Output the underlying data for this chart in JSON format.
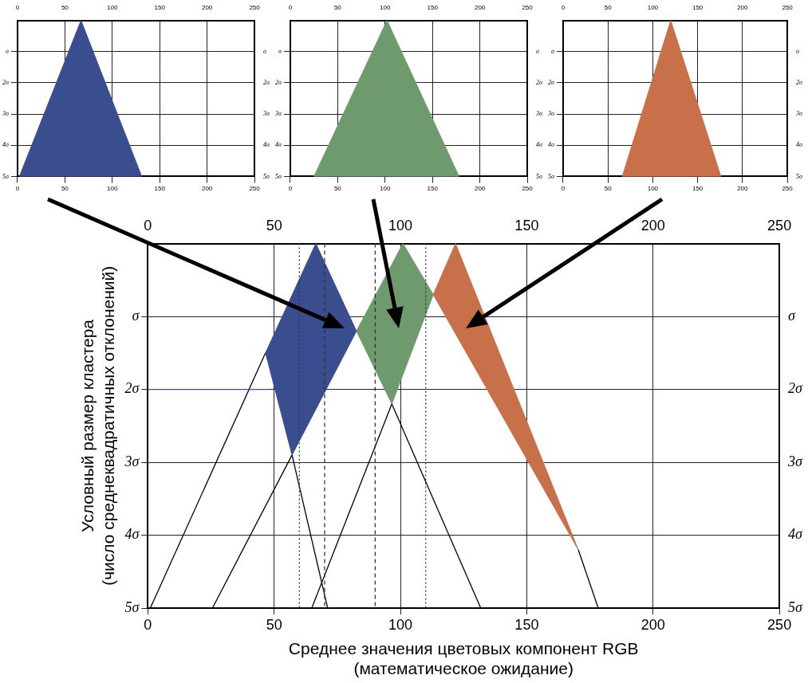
{
  "chart_data": [
    {
      "type": "area",
      "xlim": [
        0,
        250
      ],
      "xticks": [
        0,
        50,
        100,
        150,
        200,
        250
      ],
      "x2lim": [
        0,
        250
      ],
      "x2ticks": [
        0,
        50,
        100,
        150,
        200,
        250
      ],
      "ylim": [
        5,
        0
      ],
      "yticks": [
        {
          "value": 1,
          "label": "σ"
        },
        {
          "value": 2,
          "label": "2σ"
        },
        {
          "value": 3,
          "label": "3σ"
        },
        {
          "value": 4,
          "label": "4σ"
        },
        {
          "value": 5,
          "label": "5σ"
        }
      ],
      "y2lim": [
        5,
        0
      ],
      "y2ticks": [
        {
          "value": 1,
          "label": "σ"
        },
        {
          "value": 2,
          "label": "2σ"
        },
        {
          "value": 3,
          "label": "3σ"
        },
        {
          "value": 4,
          "label": "4σ"
        },
        {
          "value": 5,
          "label": "5σ"
        }
      ],
      "grid": true,
      "legend": false,
      "marker": "none",
      "series": [
        {
          "color": "#3a4e8f",
          "x": [
            2,
            67,
            131,
            2
          ],
          "values": [
            5,
            0,
            5,
            5
          ]
        }
      ]
    },
    {
      "type": "area",
      "xlim": [
        0,
        250
      ],
      "xticks": [
        0,
        50,
        100,
        150,
        200,
        250
      ],
      "x2lim": [
        0,
        250
      ],
      "x2ticks": [
        0,
        50,
        100,
        150,
        200,
        250
      ],
      "ylim": [
        5,
        0
      ],
      "yticks": [
        {
          "value": 1,
          "label": "σ"
        },
        {
          "value": 2,
          "label": "2σ"
        },
        {
          "value": 3,
          "label": "3σ"
        },
        {
          "value": 4,
          "label": "4σ"
        },
        {
          "value": 5,
          "label": "5σ"
        }
      ],
      "y2lim": [
        5,
        0
      ],
      "y2ticks": [
        {
          "value": 1,
          "label": "σ"
        },
        {
          "value": 2,
          "label": "2σ"
        },
        {
          "value": 3,
          "label": "3σ"
        },
        {
          "value": 4,
          "label": "4σ"
        },
        {
          "value": 5,
          "label": "5σ"
        }
      ],
      "grid": true,
      "legend": false,
      "marker": "none",
      "series": [
        {
          "color": "#6f9a6e",
          "x": [
            25,
            102,
            178,
            25
          ],
          "values": [
            5,
            0,
            5,
            5
          ]
        }
      ]
    },
    {
      "type": "area",
      "xlim": [
        0,
        250
      ],
      "xticks": [
        0,
        50,
        100,
        150,
        200,
        250
      ],
      "x2lim": [
        0,
        250
      ],
      "x2ticks": [
        0,
        50,
        100,
        150,
        200,
        250
      ],
      "ylim": [
        5,
        0
      ],
      "yticks": [
        {
          "value": 1,
          "label": "σ"
        },
        {
          "value": 2,
          "label": "2σ"
        },
        {
          "value": 3,
          "label": "3σ"
        },
        {
          "value": 4,
          "label": "4σ"
        },
        {
          "value": 5,
          "label": "5σ"
        }
      ],
      "y2lim": [
        5,
        0
      ],
      "y2ticks": [
        {
          "value": 1,
          "label": "σ"
        },
        {
          "value": 2,
          "label": "2σ"
        },
        {
          "value": 3,
          "label": "3σ"
        },
        {
          "value": 4,
          "label": "4σ"
        },
        {
          "value": 5,
          "label": "5σ"
        }
      ],
      "grid": true,
      "legend": false,
      "marker": "none",
      "series": [
        {
          "color": "#c8704a",
          "x": [
            66,
            120,
            176,
            66
          ],
          "values": [
            5,
            0,
            5,
            5
          ]
        }
      ]
    },
    {
      "type": "area",
      "xlabel": "Среднее значения цветовых компонент RGB\n(математическое ожидание)",
      "ylabel": "Условный размер кластера\n(число среднеквадратичных отклонений)",
      "xlim": [
        0,
        250
      ],
      "xticks": [
        0,
        50,
        100,
        150,
        200,
        250
      ],
      "x2lim": [
        0,
        250
      ],
      "x2ticks": [
        0,
        50,
        100,
        150,
        200,
        250
      ],
      "ylim": [
        5,
        0
      ],
      "yticks": [
        {
          "value": 1,
          "label": "σ"
        },
        {
          "value": 2,
          "label": "2σ"
        },
        {
          "value": 3,
          "label": "3σ"
        },
        {
          "value": 4,
          "label": "4σ"
        },
        {
          "value": 5,
          "label": "5σ"
        }
      ],
      "y2lim": [
        5,
        0
      ],
      "y2ticks": [
        {
          "value": 1,
          "label": "σ"
        },
        {
          "value": 2,
          "label": "2σ"
        },
        {
          "value": 3,
          "label": "3σ"
        },
        {
          "value": 4,
          "label": "4σ"
        },
        {
          "value": 5,
          "label": "5σ"
        }
      ],
      "grid": true,
      "legend": false,
      "marker": "none",
      "ref_lines": [
        {
          "axis": "x",
          "value": 60,
          "line_style": "dotted",
          "color": "#333333"
        },
        {
          "axis": "x",
          "value": 70,
          "line_style": "dashed",
          "color": "#333333"
        },
        {
          "axis": "x",
          "value": 90,
          "line_style": "dashed",
          "color": "#333333"
        },
        {
          "axis": "x",
          "value": 110,
          "line_style": "dotted",
          "color": "#333333"
        }
      ],
      "series": [
        {
          "color": "#3a4e8f",
          "x": [
            66.5,
            82.6,
            57.1,
            46.6,
            66.5
          ],
          "values": [
            0,
            1.2,
            2.9,
            1.5,
            0
          ]
        },
        {
          "color": "#6f9a6e",
          "x": [
            101,
            113,
            96.6,
            82.6,
            101
          ],
          "values": [
            0,
            0.7,
            2.2,
            1.2,
            0
          ]
        },
        {
          "color": "#c8704a",
          "x": [
            121.8,
            170.4,
            113,
            121.8
          ],
          "values": [
            0,
            4.2,
            0.7,
            0
          ]
        },
        {
          "type": "line",
          "color": "#3a4e8f",
          "x": [
            0,
            48
          ],
          "values": [
            2,
            2
          ]
        },
        {
          "type": "line",
          "color": "#000000",
          "x": [
            1,
            46.6
          ],
          "values": [
            5,
            1.5
          ]
        },
        {
          "type": "line",
          "color": "#000000",
          "x": [
            25.6,
            57.1
          ],
          "values": [
            5,
            2.9
          ]
        },
        {
          "type": "line",
          "color": "#000000",
          "x": [
            71.2,
            57.1
          ],
          "values": [
            5,
            2.9
          ]
        },
        {
          "type": "line",
          "color": "#000000",
          "x": [
            64.9,
            96.6
          ],
          "values": [
            5,
            2.2
          ]
        },
        {
          "type": "line",
          "color": "#000000",
          "x": [
            131.8,
            96.6
          ],
          "values": [
            5,
            2.2
          ]
        },
        {
          "type": "line",
          "color": "#000000",
          "x": [
            178.3,
            170.4
          ],
          "values": [
            5,
            4.2
          ]
        }
      ]
    }
  ]
}
